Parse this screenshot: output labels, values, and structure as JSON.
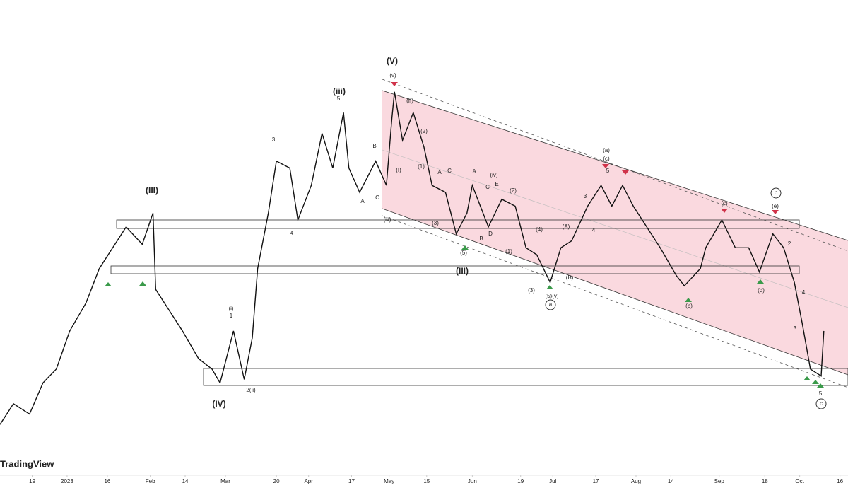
{
  "chart_data": {
    "type": "line",
    "brand": "TradingView",
    "color": "#111111",
    "xlim": [
      -25,
      291
    ],
    "ylim": [
      0,
      100
    ],
    "xticks": [
      {
        "value": -13,
        "label": "19"
      },
      {
        "value": 0,
        "label": "2023"
      },
      {
        "value": 15,
        "label": "16"
      },
      {
        "value": 31,
        "label": "Feb"
      },
      {
        "value": 44,
        "label": "14"
      },
      {
        "value": 59,
        "label": "Mar"
      },
      {
        "value": 78,
        "label": "20"
      },
      {
        "value": 90,
        "label": "Apr"
      },
      {
        "value": 106,
        "label": "17"
      },
      {
        "value": 120,
        "label": "May"
      },
      {
        "value": 134,
        "label": "15"
      },
      {
        "value": 151,
        "label": "Jun"
      },
      {
        "value": 169,
        "label": "19"
      },
      {
        "value": 181,
        "label": "Jul"
      },
      {
        "value": 197,
        "label": "17"
      },
      {
        "value": 212,
        "label": "Aug"
      },
      {
        "value": 225,
        "label": "14"
      },
      {
        "value": 243,
        "label": "Sep"
      },
      {
        "value": 260,
        "label": "18"
      },
      {
        "value": 273,
        "label": "Oct"
      },
      {
        "value": 288,
        "label": "16"
      }
    ],
    "x": [
      -25,
      -20,
      -14,
      -9,
      -4,
      1,
      7,
      12,
      17,
      22,
      28,
      32,
      33,
      38,
      43,
      49,
      54,
      57,
      62,
      66,
      69,
      71,
      75,
      78,
      83,
      86,
      91,
      95,
      99,
      103,
      105,
      109,
      115,
      119,
      121,
      122,
      125,
      129,
      133,
      136,
      141,
      145,
      149,
      151,
      157,
      162,
      167,
      171,
      175,
      180,
      184,
      188,
      194,
      199,
      203,
      207,
      211,
      216,
      221,
      227,
      230,
      236,
      238,
      244,
      249,
      254,
      258,
      263,
      267,
      271,
      274,
      277,
      281,
      282
    ],
    "values": [
      2,
      8,
      5,
      14,
      18,
      29,
      37,
      47,
      53,
      59,
      54,
      63,
      41,
      35,
      29,
      21,
      18,
      14,
      29,
      15,
      27,
      47,
      63,
      78,
      76,
      61,
      71,
      86,
      76,
      92,
      76,
      69,
      78,
      71,
      90,
      98,
      84,
      92,
      82,
      71,
      69,
      57,
      63,
      71,
      59,
      67,
      65,
      53,
      51,
      43,
      53,
      55,
      65,
      71,
      65,
      71,
      65,
      59,
      53,
      45,
      42,
      47,
      53,
      61,
      53,
      53,
      46,
      57,
      53,
      43,
      31,
      18,
      16,
      29
    ],
    "wave_labels": [
      {
        "text": "(V)"
      },
      {
        "text": "(v)"
      },
      {
        "text": "(iii)"
      },
      {
        "text": "5"
      },
      {
        "text": "(III)"
      },
      {
        "text": "(IV)"
      },
      {
        "text": "(i)"
      },
      {
        "text": "1"
      },
      {
        "text": "2(ii)"
      },
      {
        "text": "3"
      },
      {
        "text": "4"
      },
      {
        "text": "B"
      },
      {
        "text": "A"
      },
      {
        "text": "C"
      },
      {
        "text": "(I)"
      },
      {
        "text": "(II)"
      },
      {
        "text": "(2)"
      },
      {
        "text": "(1)"
      },
      {
        "text": "A"
      },
      {
        "text": "C"
      },
      {
        "text": "A"
      },
      {
        "text": "(iv)"
      },
      {
        "text": "E"
      },
      {
        "text": "C"
      },
      {
        "text": "(2)"
      },
      {
        "text": "(iv)"
      },
      {
        "text": "(3)"
      },
      {
        "text": "(5)"
      },
      {
        "text": "B"
      },
      {
        "text": "D"
      },
      {
        "text": "(1)"
      },
      {
        "text": "(4)"
      },
      {
        "text": "(A)"
      },
      {
        "text": "4"
      },
      {
        "text": "(III)"
      },
      {
        "text": "(3)"
      },
      {
        "text": "(5)(v)"
      },
      {
        "text": "(B)"
      },
      {
        "text": "a",
        "circled": true
      },
      {
        "text": "3"
      },
      {
        "text": "(a)"
      },
      {
        "text": "(c)"
      },
      {
        "text": "5"
      },
      {
        "text": "(c)"
      },
      {
        "text": "b",
        "circled": true
      },
      {
        "text": "(e)"
      },
      {
        "text": "2"
      },
      {
        "text": "(b)"
      },
      {
        "text": "(d)"
      },
      {
        "text": "4"
      },
      {
        "text": "3"
      },
      {
        "text": "5"
      },
      {
        "text": "c",
        "circled": true
      }
    ]
  }
}
